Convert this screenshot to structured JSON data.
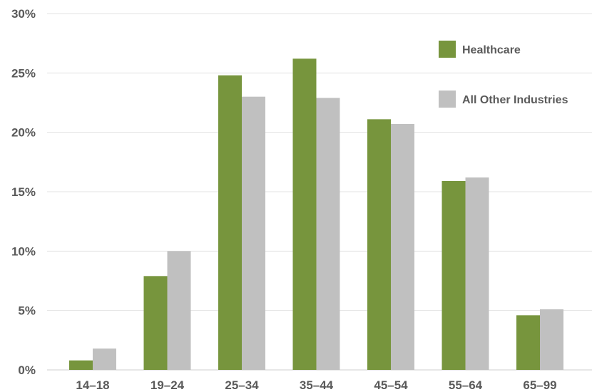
{
  "chart_data": {
    "type": "bar",
    "title": "",
    "xlabel": "",
    "ylabel": "",
    "categories": [
      "14–18",
      "19–24",
      "25–34",
      "35–44",
      "45–54",
      "55–64",
      "65–99"
    ],
    "series": [
      {
        "name": "Healthcare",
        "color": "#77953d",
        "values": [
          0.8,
          7.9,
          24.8,
          26.2,
          21.1,
          15.9,
          4.6
        ]
      },
      {
        "name": "All Other Industries",
        "color": "#c0c0c0",
        "values": [
          1.8,
          10.0,
          23.0,
          22.9,
          20.7,
          16.2,
          5.1
        ]
      }
    ],
    "ylim": [
      0,
      30
    ],
    "yticks": [
      0,
      5,
      10,
      15,
      20,
      25,
      30
    ],
    "ytick_labels": [
      "0%",
      "5%",
      "10%",
      "15%",
      "20%",
      "25%",
      "30%"
    ],
    "grid": true,
    "legend_position": "top-right"
  }
}
